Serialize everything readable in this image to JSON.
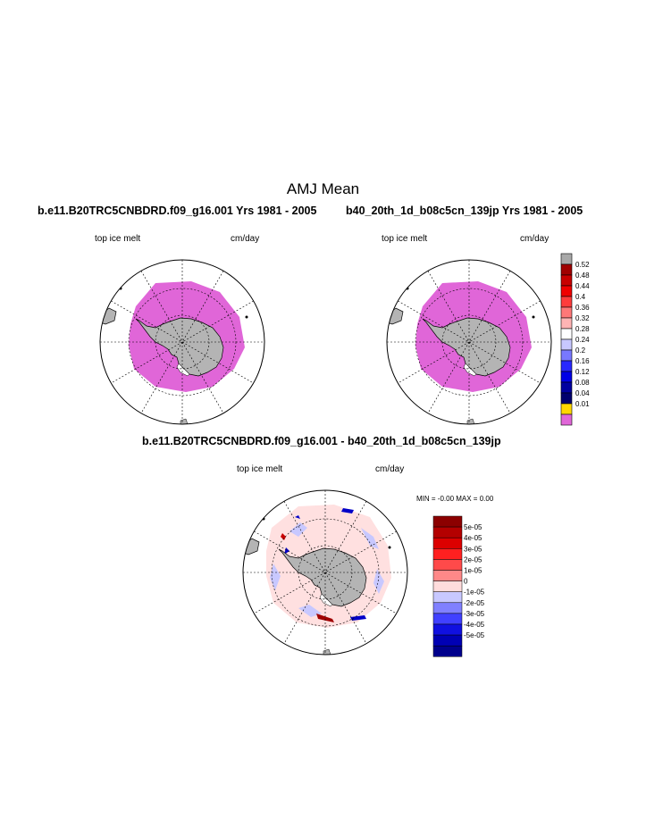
{
  "title": "AMJ Mean",
  "panels": [
    {
      "title": "b.e11.B20TRC5CNBDRD.f09_g16.001  Yrs 1981 - 2005",
      "left_label": "top ice melt",
      "right_label": "cm/day"
    },
    {
      "title": "b40_20th_1d_b08c5cn_139jp  Yrs 1981 - 2005",
      "left_label": "top ice melt",
      "right_label": "cm/day"
    },
    {
      "title": "b.e11.B20TRC5CNBDRD.f09_g16.001 - b40_20th_1d_b08c5cn_139jp",
      "left_label": "top ice melt",
      "right_label": "cm/day",
      "stats": "MIN =  -0.00 MAX =    0.00"
    }
  ],
  "legend_top": {
    "labels": [
      "0.52",
      "0.48",
      "0.44",
      "0.4",
      "0.36",
      "0.32",
      "0.28",
      "0.24",
      "0.2",
      "0.16",
      "0.12",
      "0.08",
      "0.04",
      "0.01"
    ],
    "colors": [
      "#a8a8a8",
      "#a00000",
      "#c80000",
      "#f00000",
      "#ff3c3c",
      "#ff7878",
      "#ffb4b4",
      "#ffffff",
      "#c8c8ff",
      "#7878ff",
      "#2828ff",
      "#0000e6",
      "#0000a0",
      "#00006e",
      "#ffd700",
      "#e066d8"
    ]
  },
  "legend_diff": {
    "labels": [
      "5e-05",
      "4e-05",
      "3e-05",
      "2e-05",
      "1e-05",
      "0",
      "-1e-05",
      "-2e-05",
      "-3e-05",
      "-4e-05",
      "-5e-05"
    ],
    "colors": [
      "#8c0000",
      "#b40000",
      "#dc0000",
      "#ff2020",
      "#ff4a4a",
      "#ff8888",
      "#ffdcdc",
      "#c8c8ff",
      "#8080ff",
      "#4040ff",
      "#1010e0",
      "#0000b4",
      "#00008c"
    ]
  },
  "colors": {
    "land": "#b4b4b4",
    "ice_melt": "#e066d8",
    "diff_fill": "#ffe0e0",
    "diff_blue": "#c8c8ff"
  }
}
